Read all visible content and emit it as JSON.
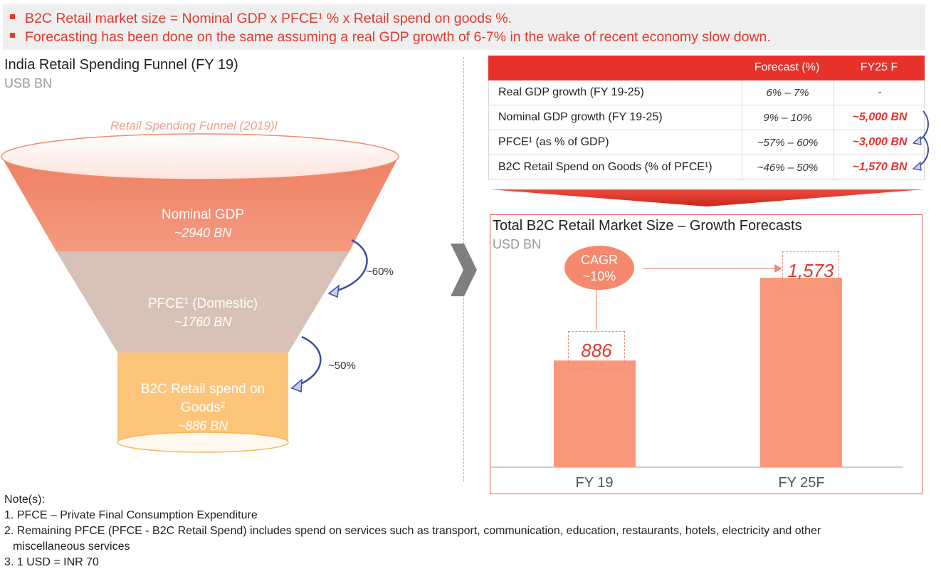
{
  "banner": {
    "line1": "B2C Retail market size = Nominal GDP x PFCE¹ %  x Retail spend on goods %.",
    "line2": "Forecasting has been done on the same assuming a real GDP growth of 6-7% in the wake of recent economy slow down."
  },
  "funnel": {
    "title": "India Retail Spending Funnel (FY 19)",
    "unit": "USB BN",
    "caption": "Retail Spending Funnel (2019)l",
    "stages": [
      {
        "name": "Nominal GDP",
        "value": "~2940 BN"
      },
      {
        "name": "PFCE¹ (Domestic)",
        "value": "~1760 BN"
      },
      {
        "name_line1": "B2C Retail spend on",
        "name_line2": "Goods²",
        "value": "~886 BN"
      }
    ],
    "arrows": [
      {
        "label": "~60%"
      },
      {
        "label": "~50%"
      }
    ]
  },
  "table": {
    "headers": [
      "",
      "Forecast (%)",
      "FY25 F"
    ],
    "rows": [
      {
        "label": "Real GDP growth (FY 19-25)",
        "forecast": "6% – 7%",
        "fy25": "-"
      },
      {
        "label": "Nominal GDP growth (FY 19-25)",
        "forecast": "9% – 10%",
        "fy25": "~5,000 BN"
      },
      {
        "label": "PFCE¹ (as % of GDP)",
        "forecast": "~57% – 60%",
        "fy25": "~3,000 BN"
      },
      {
        "label": "B2C Retail Spend on Goods (% of PFCE¹)",
        "forecast": "~46% – 50%",
        "fy25": "~1,570 BN"
      }
    ]
  },
  "chart_data": {
    "type": "bar",
    "title": "Total  B2C Retail Market Size – Growth Forecasts",
    "ylabel": "USD BN",
    "categories": [
      "FY 19",
      "FY 25F"
    ],
    "values": [
      886,
      1573
    ],
    "value_labels": [
      "886",
      "1,573"
    ],
    "ylim": [
      0,
      2100
    ],
    "annotation": {
      "line1": "CAGR",
      "line2": "~10%"
    },
    "colors": {
      "bar": "#f8977a",
      "label": "#e0392e"
    }
  },
  "notes": {
    "heading": "Note(s):",
    "items": [
      "1. PFCE – Private Final Consumption Expenditure",
      "2. Remaining PFCE (PFCE -  B2C Retail Spend) includes spend on services such as transport, communication, education, restaurants, hotels, electricity and other",
      "miscellaneous services",
      "3. 1 USD = INR 70"
    ]
  },
  "colors": {
    "accent": "#e8312a",
    "funnel_top": "#f4927a",
    "funnel_mid": "#d9c3b8",
    "funnel_bottom": "#fdc67a"
  }
}
